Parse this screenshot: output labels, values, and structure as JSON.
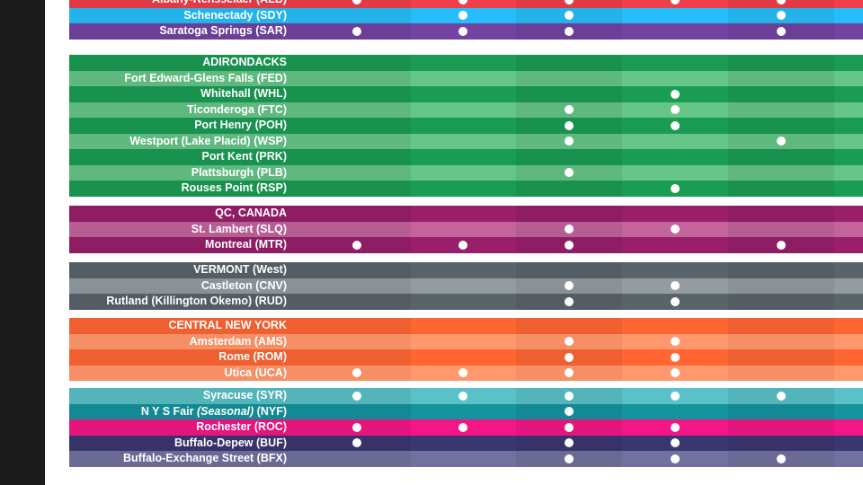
{
  "colors": {
    "red": {
      "base": "#e03a45",
      "mid": "#e85560",
      "light": "#ec6a73"
    },
    "sky": {
      "base": "#23b2ea",
      "mid": "#34baee",
      "light": "#4ac4f0"
    },
    "violet": {
      "base": "#6b3f96",
      "mid": "#7a50a4",
      "light": "#8a62b1"
    },
    "green": {
      "base": "#19924f",
      "mid": "#2ba05e",
      "light": "#5fb97f"
    },
    "plum": {
      "base": "#8f1d63",
      "mid": "#a23474",
      "light": "#b65d92"
    },
    "slate": {
      "base": "#535d63",
      "mid": "#636d73",
      "light": "#8a9297"
    },
    "orange": {
      "base": "#ef5f2f",
      "mid": "#f27443",
      "light": "#f58f66"
    },
    "teal": {
      "base": "#138a93",
      "mid": "#2aa1a8",
      "light": "#53b4ba"
    },
    "magenta": {
      "base": "#e4157d",
      "mid": "#e93a90",
      "light": "#ee5ea3"
    },
    "navy": {
      "base": "#35336a",
      "mid": "#43427a",
      "light": "#6a6a95"
    }
  },
  "sections": [
    {
      "id": "capital",
      "rows": [
        {
          "label": "Albany-Rensselaer (ALB)",
          "color": "red",
          "shade": "base",
          "dots": [
            true,
            true,
            true,
            true,
            true
          ]
        },
        {
          "label": "Schenectady (SDY)",
          "color": "sky",
          "shade": "base",
          "dots": [
            false,
            true,
            true,
            false,
            true
          ]
        },
        {
          "label": "Saratoga Springs (SAR)",
          "color": "violet",
          "shade": "base",
          "dots": [
            true,
            true,
            true,
            false,
            true
          ]
        }
      ]
    },
    {
      "id": "adirondacks",
      "rows": [
        {
          "label": "ADIRONDACKS",
          "header": true,
          "color": "green",
          "shade": "base",
          "dots": [
            false,
            false,
            false,
            false,
            false
          ]
        },
        {
          "label": "Fort Edward-Glens Falls (FED)",
          "color": "green",
          "shade": "light",
          "dots": [
            false,
            false,
            false,
            false,
            false
          ]
        },
        {
          "label": "Whitehall (WHL)",
          "color": "green",
          "shade": "base",
          "dots": [
            false,
            false,
            false,
            true,
            false
          ]
        },
        {
          "label": "Ticonderoga (FTC)",
          "color": "green",
          "shade": "light",
          "dots": [
            false,
            false,
            true,
            true,
            false
          ]
        },
        {
          "label": "Port Henry (POH)",
          "color": "green",
          "shade": "base",
          "dots": [
            false,
            false,
            true,
            true,
            false
          ]
        },
        {
          "label": "Westport (Lake Placid) (WSP)",
          "color": "green",
          "shade": "light",
          "dots": [
            false,
            false,
            true,
            false,
            true
          ]
        },
        {
          "label": "Port Kent (PRK)",
          "color": "green",
          "shade": "base",
          "dots": [
            false,
            false,
            false,
            false,
            false
          ]
        },
        {
          "label": "Plattsburgh (PLB)",
          "color": "green",
          "shade": "light",
          "dots": [
            false,
            false,
            true,
            false,
            false
          ]
        },
        {
          "label": "Rouses Point (RSP)",
          "color": "green",
          "shade": "base",
          "dots": [
            false,
            false,
            false,
            true,
            false
          ]
        }
      ]
    },
    {
      "id": "quebec",
      "rows": [
        {
          "label": "QC, CANADA",
          "header": true,
          "color": "plum",
          "shade": "base",
          "dots": [
            false,
            false,
            false,
            false,
            false
          ]
        },
        {
          "label": "St. Lambert (SLQ)",
          "color": "plum",
          "shade": "light",
          "dots": [
            false,
            false,
            true,
            true,
            false
          ]
        },
        {
          "label": "Montreal (MTR)",
          "color": "plum",
          "shade": "base",
          "dots": [
            true,
            true,
            true,
            false,
            true
          ]
        }
      ]
    },
    {
      "id": "vermont",
      "rows": [
        {
          "label": "VERMONT (West)",
          "header": true,
          "color": "slate",
          "shade": "base",
          "dots": [
            false,
            false,
            false,
            false,
            false
          ]
        },
        {
          "label": "Castleton (CNV)",
          "color": "slate",
          "shade": "light",
          "dots": [
            false,
            false,
            true,
            true,
            false
          ]
        },
        {
          "label": "Rutland (Killington Okemo) (RUD)",
          "color": "slate",
          "shade": "base",
          "dots": [
            false,
            false,
            true,
            true,
            false
          ]
        }
      ]
    },
    {
      "id": "central",
      "rows": [
        {
          "label": "CENTRAL NEW YORK",
          "header": true,
          "color": "orange",
          "shade": "base",
          "dots": [
            false,
            false,
            false,
            false,
            false
          ]
        },
        {
          "label": "Amsterdam (AMS)",
          "color": "orange",
          "shade": "light",
          "dots": [
            false,
            false,
            true,
            true,
            false
          ]
        },
        {
          "label": "Rome (ROM)",
          "color": "orange",
          "shade": "base",
          "dots": [
            false,
            false,
            true,
            true,
            false
          ]
        },
        {
          "label": "Utica (UCA)",
          "color": "orange",
          "shade": "light",
          "dots": [
            true,
            true,
            true,
            true,
            false
          ]
        }
      ]
    },
    {
      "id": "west",
      "rows": [
        {
          "label": "Syracuse (SYR)",
          "color": "teal",
          "shade": "light",
          "dots": [
            true,
            true,
            true,
            true,
            true
          ]
        },
        {
          "label": "N Y S Fair (Seasonal) (NYF)",
          "italic_part": "(Seasonal)",
          "color": "teal",
          "shade": "base",
          "dots": [
            false,
            false,
            true,
            false,
            false
          ]
        },
        {
          "label": "Rochester (ROC)",
          "color": "magenta",
          "shade": "base",
          "dots": [
            true,
            true,
            true,
            true,
            false
          ]
        },
        {
          "label": "Buffalo-Depew (BUF)",
          "color": "navy",
          "shade": "base",
          "dots": [
            true,
            false,
            true,
            true,
            false
          ]
        },
        {
          "label": "Buffalo-Exchange Street (BFX)",
          "color": "navy",
          "shade": "light",
          "dots": [
            false,
            false,
            true,
            true,
            true
          ]
        }
      ]
    }
  ]
}
